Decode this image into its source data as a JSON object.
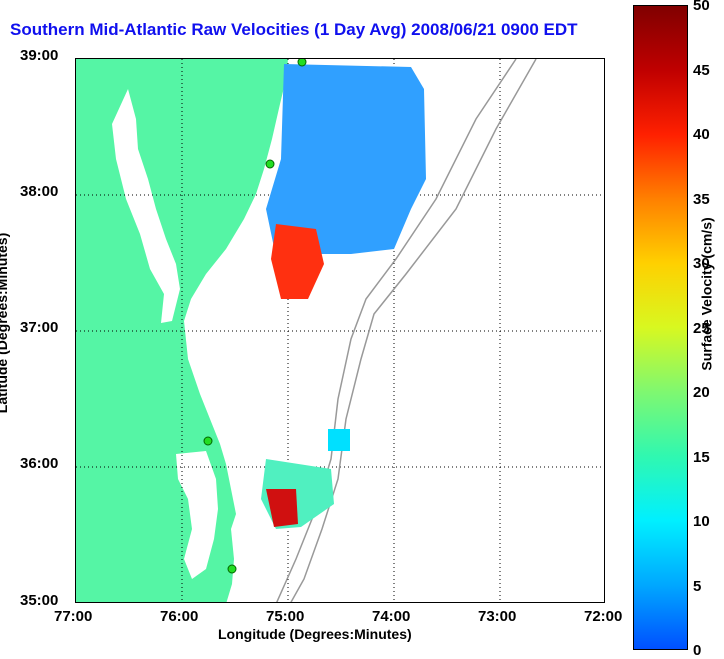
{
  "title": "Southern Mid-Atlantic Raw Velocities (1 Day Avg) 2008/06/21 0900 EDT",
  "x_axis": {
    "label": "Longitude (Degrees:Minutes)",
    "ticks": [
      "77:00",
      "76:00",
      "75:00",
      "74:00",
      "73:00",
      "72:00"
    ]
  },
  "y_axis": {
    "label": "Latitude (Degrees:Minutes)",
    "ticks": [
      "39:00",
      "38:00",
      "37:00",
      "36:00",
      "35:00"
    ]
  },
  "colorbar": {
    "label": "Surface Velocity (cm/s)",
    "ticks": [
      "50",
      "45",
      "40",
      "35",
      "30",
      "25",
      "20",
      "15",
      "10",
      "5",
      "0"
    ]
  },
  "colors": {
    "land": "#55f5a5",
    "title": "#1010ee",
    "station": "#22dd22"
  }
}
